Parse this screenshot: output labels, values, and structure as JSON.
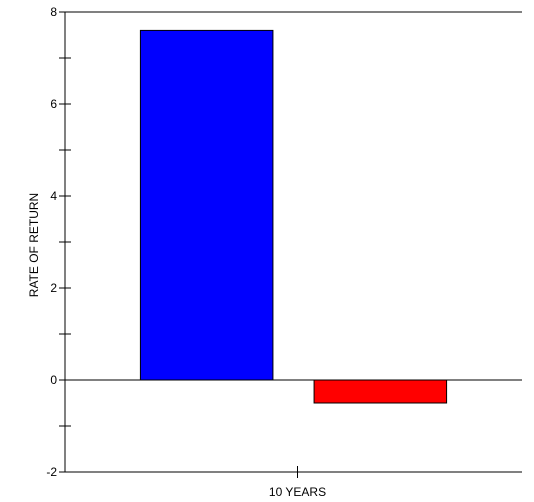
{
  "chart_data": {
    "type": "bar",
    "title": "",
    "xlabel": "",
    "ylabel": "RATE OF RETURN",
    "categories": [
      "10 YEARS"
    ],
    "series": [
      {
        "values": [
          7.6
        ],
        "color": "#0000ff"
      },
      {
        "values": [
          -0.5
        ],
        "color": "#ff0000"
      }
    ],
    "ylim": [
      -2,
      8
    ],
    "yticks": [
      -2,
      0,
      2,
      4,
      6,
      8
    ],
    "ytick_labels": [
      "-2",
      "0",
      "2",
      "4",
      "6",
      "8"
    ],
    "y_minor_step": 1,
    "zero_line": true,
    "grid": false,
    "legend": "none",
    "frame": "top-and-left-axes"
  }
}
